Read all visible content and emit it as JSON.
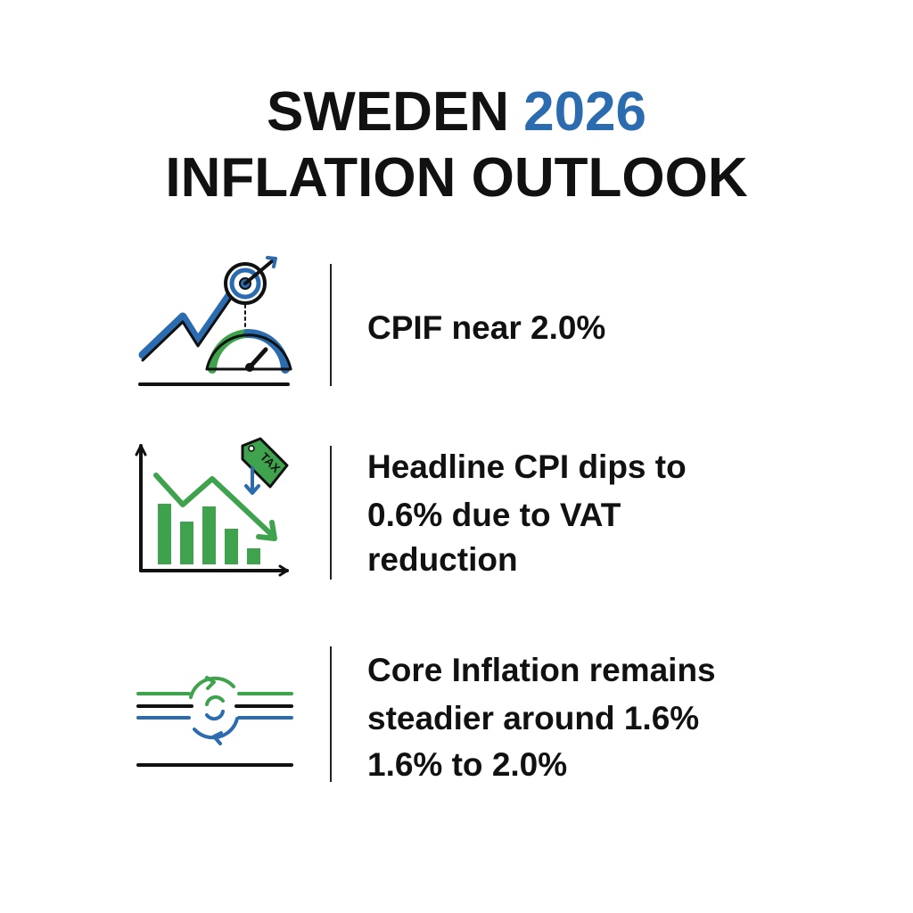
{
  "header": {
    "title_part1": "SWEDEN",
    "title_year": "2026",
    "title_line2": "INFLATION OUTLOOK"
  },
  "items": [
    {
      "lines": [
        "CPIF near 2.0%"
      ]
    },
    {
      "icon_label": "TAX",
      "lines": [
        "Headline CPI dips to",
        "0.6% due to VAT",
        "reduction"
      ]
    },
    {
      "lines": [
        "Core Inflation remains",
        "steadier around 1.6%",
        "1.6% to 2.0%"
      ]
    }
  ]
}
